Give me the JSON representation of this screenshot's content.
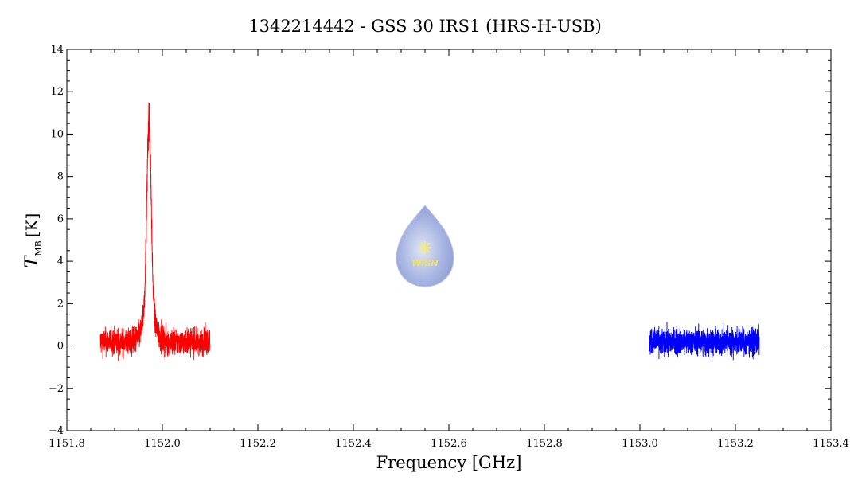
{
  "chart_data": {
    "type": "line",
    "title": "1342214442 - GSS 30 IRS1 (HRS-H-USB)",
    "xlabel": "Frequency [GHz]",
    "ylabel": {
      "symbol": "T",
      "subscript": "MB",
      "unit": "[K]"
    },
    "xlim": [
      1151.8,
      1153.4
    ],
    "ylim": [
      -4,
      14
    ],
    "x_ticks": [
      "1151.8",
      "1152.0",
      "1152.2",
      "1152.4",
      "1152.6",
      "1152.8",
      "1153.0",
      "1153.2",
      "1153.4"
    ],
    "y_ticks": [
      "−4",
      "−2",
      "0",
      "2",
      "4",
      "6",
      "8",
      "10",
      "12",
      "14"
    ],
    "grid": false,
    "series": [
      {
        "color": "#ff0000",
        "x_range": [
          1151.87,
          1152.1
        ],
        "baseline": 0.2,
        "noise_amplitude": 1.0,
        "line_center": 1151.972,
        "peak": 11.5
      },
      {
        "color": "#0000ff",
        "x_range": [
          1153.02,
          1153.25
        ],
        "baseline": 0.2,
        "noise_amplitude": 1.0,
        "peak": null
      }
    ],
    "logo": {
      "text": "WISH"
    }
  }
}
